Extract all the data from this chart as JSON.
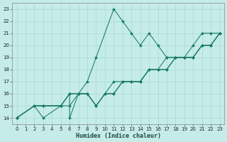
{
  "xlabel": "Humidex (Indice chaleur)",
  "xlim": [
    -0.5,
    23.5
  ],
  "ylim": [
    13.5,
    23.5
  ],
  "xticks": [
    0,
    1,
    2,
    3,
    4,
    5,
    6,
    7,
    8,
    9,
    10,
    11,
    12,
    13,
    14,
    15,
    16,
    17,
    18,
    19,
    20,
    21,
    22,
    23
  ],
  "yticks": [
    14,
    15,
    16,
    17,
    18,
    19,
    20,
    21,
    22,
    23
  ],
  "background_color": "#c5ece8",
  "grid_color": "#a8d8d2",
  "line_color": "#1a7a6a",
  "lines": [
    {
      "x": [
        0,
        2,
        3,
        5,
        6,
        6,
        7,
        8,
        9,
        11,
        12,
        13,
        14,
        15,
        16,
        17,
        18,
        19,
        20,
        21,
        22,
        23
      ],
      "y": [
        14,
        15,
        15,
        15,
        16,
        14,
        16,
        17,
        19,
        23,
        22,
        21,
        20,
        21,
        20,
        19,
        19,
        19,
        20,
        21,
        21,
        21
      ]
    },
    {
      "x": [
        0,
        2,
        3,
        5,
        6,
        7,
        8,
        9,
        10,
        11,
        12,
        13,
        14,
        15,
        16,
        17,
        18,
        19,
        20,
        21,
        22,
        23
      ],
      "y": [
        14,
        15,
        15,
        15,
        16,
        16,
        16,
        15,
        16,
        17,
        17,
        17,
        17,
        18,
        18,
        19,
        19,
        19,
        19,
        20,
        20,
        21
      ]
    },
    {
      "x": [
        0,
        2,
        3,
        5,
        6,
        7,
        8,
        9,
        10,
        11,
        12,
        13,
        14,
        15,
        16,
        17,
        18,
        19,
        20,
        21,
        22,
        23
      ],
      "y": [
        14,
        15,
        15,
        15,
        15,
        16,
        16,
        15,
        16,
        16,
        17,
        17,
        17,
        18,
        18,
        18,
        19,
        19,
        19,
        20,
        20,
        21
      ]
    },
    {
      "x": [
        0,
        2,
        3,
        5,
        6,
        7,
        8,
        9,
        10,
        11,
        12,
        13,
        14,
        15,
        16,
        17,
        18,
        19,
        20,
        21,
        22,
        23
      ],
      "y": [
        14,
        15,
        14,
        15,
        16,
        16,
        16,
        15,
        16,
        16,
        17,
        17,
        17,
        18,
        18,
        18,
        19,
        19,
        19,
        20,
        20,
        21
      ]
    }
  ]
}
